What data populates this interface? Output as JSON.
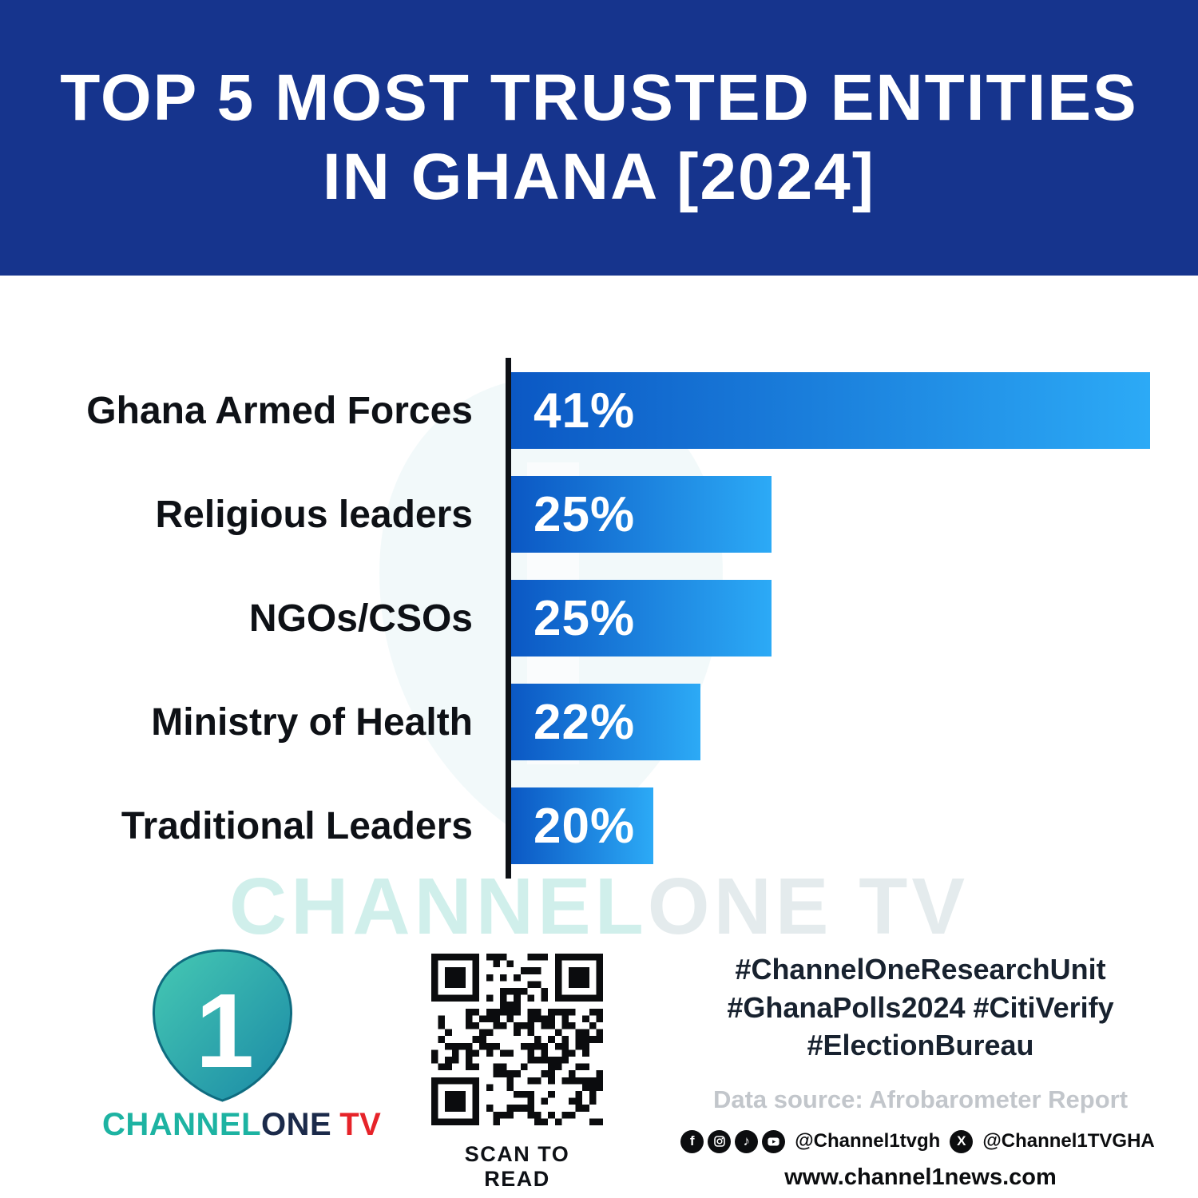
{
  "header": {
    "title_line1": "TOP 5 MOST TRUSTED ENTITIES",
    "title_line2": "IN GHANA [2024]"
  },
  "chart_data": {
    "type": "bar",
    "orientation": "horizontal",
    "title": "TOP 5 MOST TRUSTED ENTITIES IN GHANA [2024]",
    "categories": [
      "Ghana Armed Forces",
      "Religious leaders",
      "NGOs/CSOs",
      "Ministry of Health",
      "Traditional Leaders"
    ],
    "values": [
      41,
      25,
      25,
      22,
      20
    ],
    "value_labels": [
      "41%",
      "25%",
      "25%",
      "22%",
      "20%"
    ],
    "unit": "%",
    "xlabel": "",
    "ylabel": "",
    "grid": false,
    "legend": false,
    "display_axis_min": 14,
    "display_axis_max": 41,
    "bar_gradient": [
      "#0b58c4",
      "#2caaf6"
    ]
  },
  "watermark": {
    "part1": "CHANNEL",
    "part2": "ONE TV"
  },
  "footer": {
    "logo": {
      "numeral": "1",
      "channel": "CHANNEL",
      "one": "ONE",
      "tv": "TV"
    },
    "qr": {
      "caption": "SCAN TO READ"
    },
    "hashtags": [
      "#ChannelOneResearchUnit",
      "#GhanaPolls2024 #CitiVerify",
      "#ElectionBureau"
    ],
    "data_source": "Data source: Afrobarometer Report",
    "social": {
      "handle_main": "@Channel1tvgh",
      "handle_x": "@Channel1TVGHA"
    },
    "website": "www.channel1news.com"
  },
  "colors": {
    "header_bg": "#16348d",
    "bar_start": "#0b58c4",
    "bar_end": "#2caaf6",
    "logo_teal": "#1db3a2",
    "logo_navy": "#1b2a4a",
    "logo_red": "#e62329"
  }
}
